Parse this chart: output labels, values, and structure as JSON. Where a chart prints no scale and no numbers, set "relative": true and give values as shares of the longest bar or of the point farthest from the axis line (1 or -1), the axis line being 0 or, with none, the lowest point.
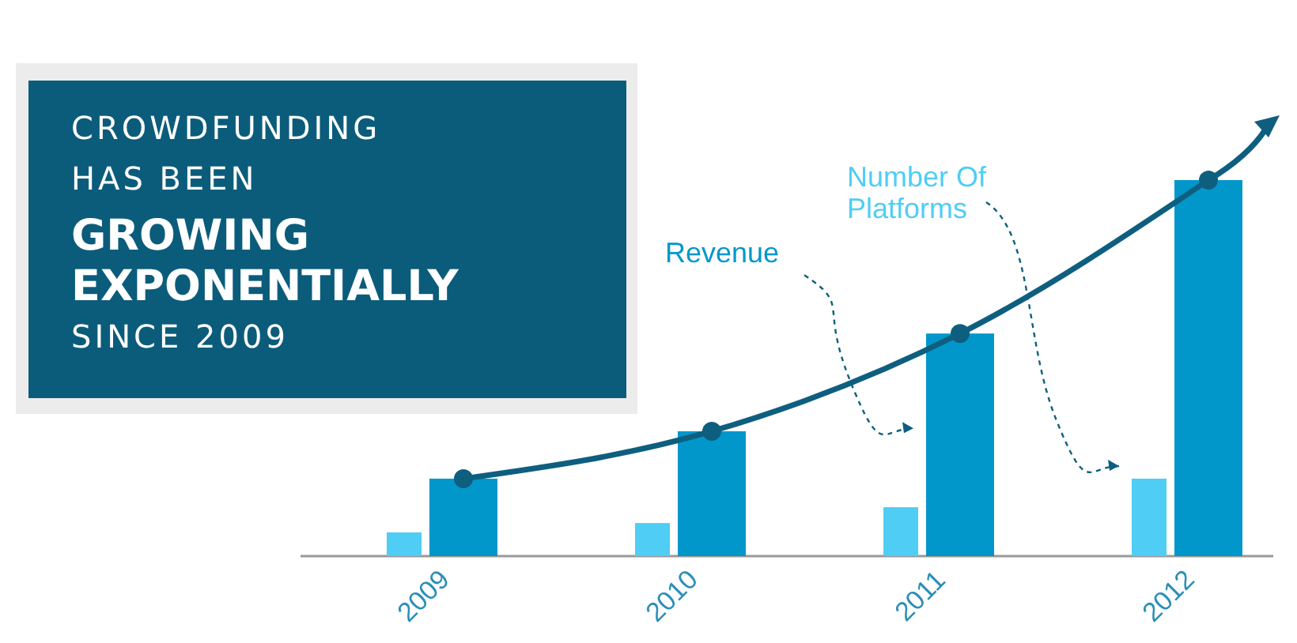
{
  "chart_data": {
    "type": "bar",
    "relative": true,
    "title": "CROWDFUNDING\nHAS BEEN\nGROWING\nEXPONENTIALLY\nSINCE 2009",
    "categories": [
      "2009",
      "2010",
      "2011",
      "2012"
    ],
    "legend": false,
    "series": [
      {
        "name": "Number Of Platforms",
        "color": "#4fcdf5",
        "values": [
          0.063,
          0.088,
          0.13,
          0.206
        ]
      },
      {
        "name": "Revenue",
        "color": "#0297cb",
        "values": [
          0.206,
          0.332,
          0.592,
          1
        ]
      },
      {
        "type": "line",
        "color": "#0e5f7f",
        "marker": "circle",
        "values": [
          0.206,
          0.332,
          0.592,
          1
        ]
      }
    ]
  }
}
